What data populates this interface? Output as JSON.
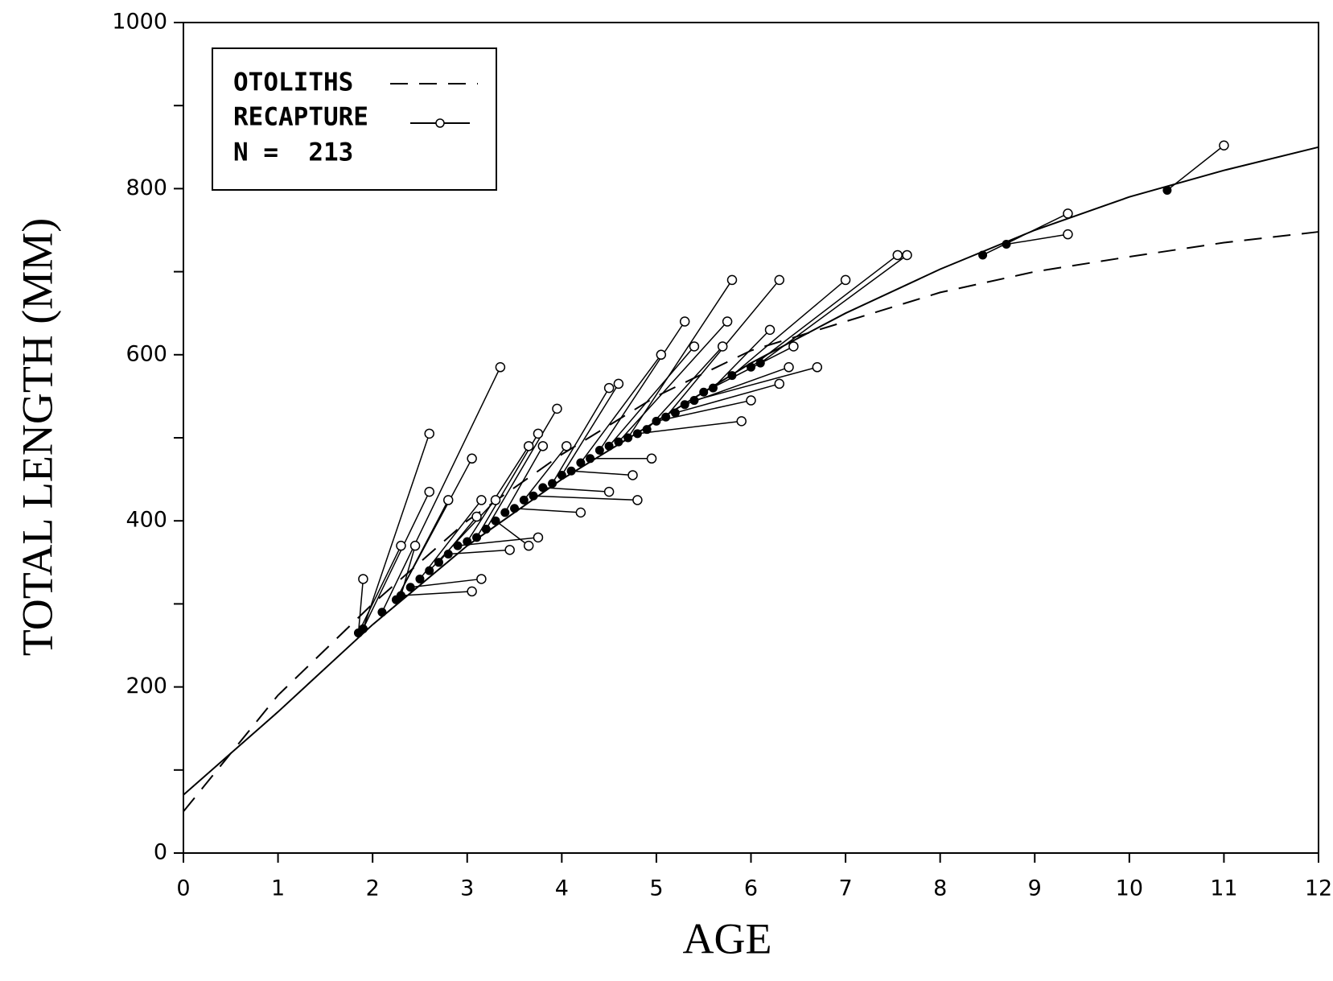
{
  "chart_data": {
    "type": "line",
    "xlabel": "AGE",
    "ylabel": "TOTAL LENGTH (MM)",
    "xlim": [
      0,
      12
    ],
    "ylim": [
      0,
      1000
    ],
    "xticks": [
      0,
      1,
      2,
      3,
      4,
      5,
      6,
      7,
      8,
      9,
      10,
      11,
      12
    ],
    "yticks": [
      0,
      200,
      400,
      600,
      800,
      1000
    ],
    "yminor_ticks": [
      100,
      300,
      500,
      700,
      900
    ],
    "legend_note": "N =  213",
    "series": [
      {
        "name": "OTOLITHS",
        "color": "#000000",
        "dash": true,
        "x": [
          0,
          1,
          2,
          3,
          4,
          5,
          6,
          7,
          8,
          9,
          10,
          11,
          12
        ],
        "values": [
          50,
          190,
          300,
          400,
          480,
          550,
          605,
          640,
          675,
          700,
          718,
          735,
          748
        ]
      },
      {
        "name": "RECAPTURE",
        "color": "#000000",
        "dash": false,
        "x": [
          0,
          1,
          2,
          3,
          4,
          5,
          6,
          7,
          8,
          9,
          10,
          11,
          12
        ],
        "values": [
          70,
          170,
          275,
          370,
          450,
          520,
          590,
          650,
          703,
          750,
          790,
          822,
          850
        ]
      }
    ],
    "recaptures": {
      "release_age": [
        1.85,
        1.85,
        1.9,
        1.9,
        2.1,
        2.25,
        2.25,
        2.3,
        2.3,
        2.4,
        2.5,
        2.6,
        2.7,
        2.8,
        2.9,
        3.0,
        3.1,
        3.2,
        3.3,
        3.4,
        3.5,
        3.6,
        3.7,
        3.8,
        3.9,
        4.0,
        4.1,
        4.2,
        4.3,
        4.4,
        4.5,
        4.6,
        4.7,
        4.8,
        4.9,
        5.0,
        5.1,
        5.2,
        5.3,
        5.4,
        5.5,
        5.6,
        5.8,
        6.0,
        6.1,
        8.45,
        8.7,
        10.4
      ],
      "release_length": [
        265,
        265,
        270,
        270,
        290,
        305,
        305,
        310,
        310,
        320,
        330,
        340,
        350,
        360,
        370,
        375,
        380,
        390,
        400,
        410,
        415,
        425,
        430,
        440,
        445,
        455,
        460,
        470,
        475,
        485,
        490,
        495,
        500,
        505,
        510,
        520,
        525,
        530,
        540,
        545,
        555,
        560,
        575,
        585,
        590,
        720,
        733,
        798
      ],
      "recapture_age": [
        1.9,
        2.3,
        2.6,
        2.6,
        3.35,
        3.05,
        2.8,
        2.45,
        3.05,
        3.15,
        3.15,
        3.3,
        3.1,
        3.45,
        3.75,
        3.65,
        3.75,
        3.95,
        3.65,
        3.8,
        4.2,
        4.05,
        4.8,
        4.5,
        4.5,
        4.6,
        4.75,
        5.05,
        4.95,
        5.3,
        5.4,
        5.75,
        5.8,
        5.9,
        5.7,
        6.0,
        6.3,
        6.3,
        6.4,
        6.7,
        6.45,
        6.2,
        7.0,
        7.55,
        7.65,
        9.35,
        9.35,
        11.0
      ],
      "recapture_length": [
        330,
        370,
        505,
        435,
        585,
        475,
        425,
        370,
        315,
        330,
        425,
        425,
        405,
        365,
        380,
        490,
        505,
        535,
        370,
        490,
        410,
        490,
        425,
        435,
        560,
        565,
        455,
        600,
        475,
        640,
        610,
        640,
        690,
        520,
        610,
        545,
        690,
        565,
        585,
        585,
        610,
        630,
        690,
        720,
        720,
        770,
        745,
        852
      ]
    }
  }
}
